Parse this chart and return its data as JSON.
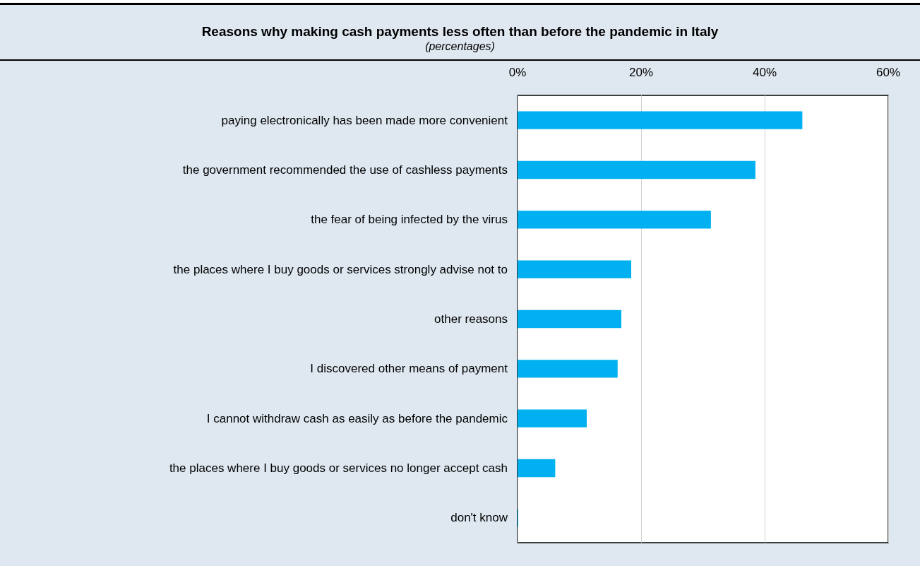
{
  "chart_data": {
    "type": "bar",
    "orientation": "horizontal",
    "title": "Reasons why making cash payments less often than before the pandemic in Italy",
    "subtitle": "(percentages)",
    "categories": [
      "paying electronically has been made more convenient",
      "the government recommended the use of cashless payments",
      "the fear of being infected by the virus",
      "the places where I buy goods or services strongly advise not to",
      "other reasons",
      "I discovered other means of payment",
      "I cannot withdraw cash as easily as before the pandemic",
      "the places where I buy goods or services no longer accept cash",
      "don't know"
    ],
    "values": [
      46.1,
      38.5,
      31.3,
      18.4,
      16.8,
      16.2,
      11.2,
      6.1,
      0.1
    ],
    "color": "#00b0f0",
    "xlim": [
      0,
      60
    ],
    "xticks": [
      {
        "value": 0,
        "label": "0%"
      },
      {
        "value": 20,
        "label": "20%"
      },
      {
        "value": 40,
        "label": "40%"
      },
      {
        "value": 60,
        "label": "60%"
      }
    ],
    "grid": "x"
  }
}
